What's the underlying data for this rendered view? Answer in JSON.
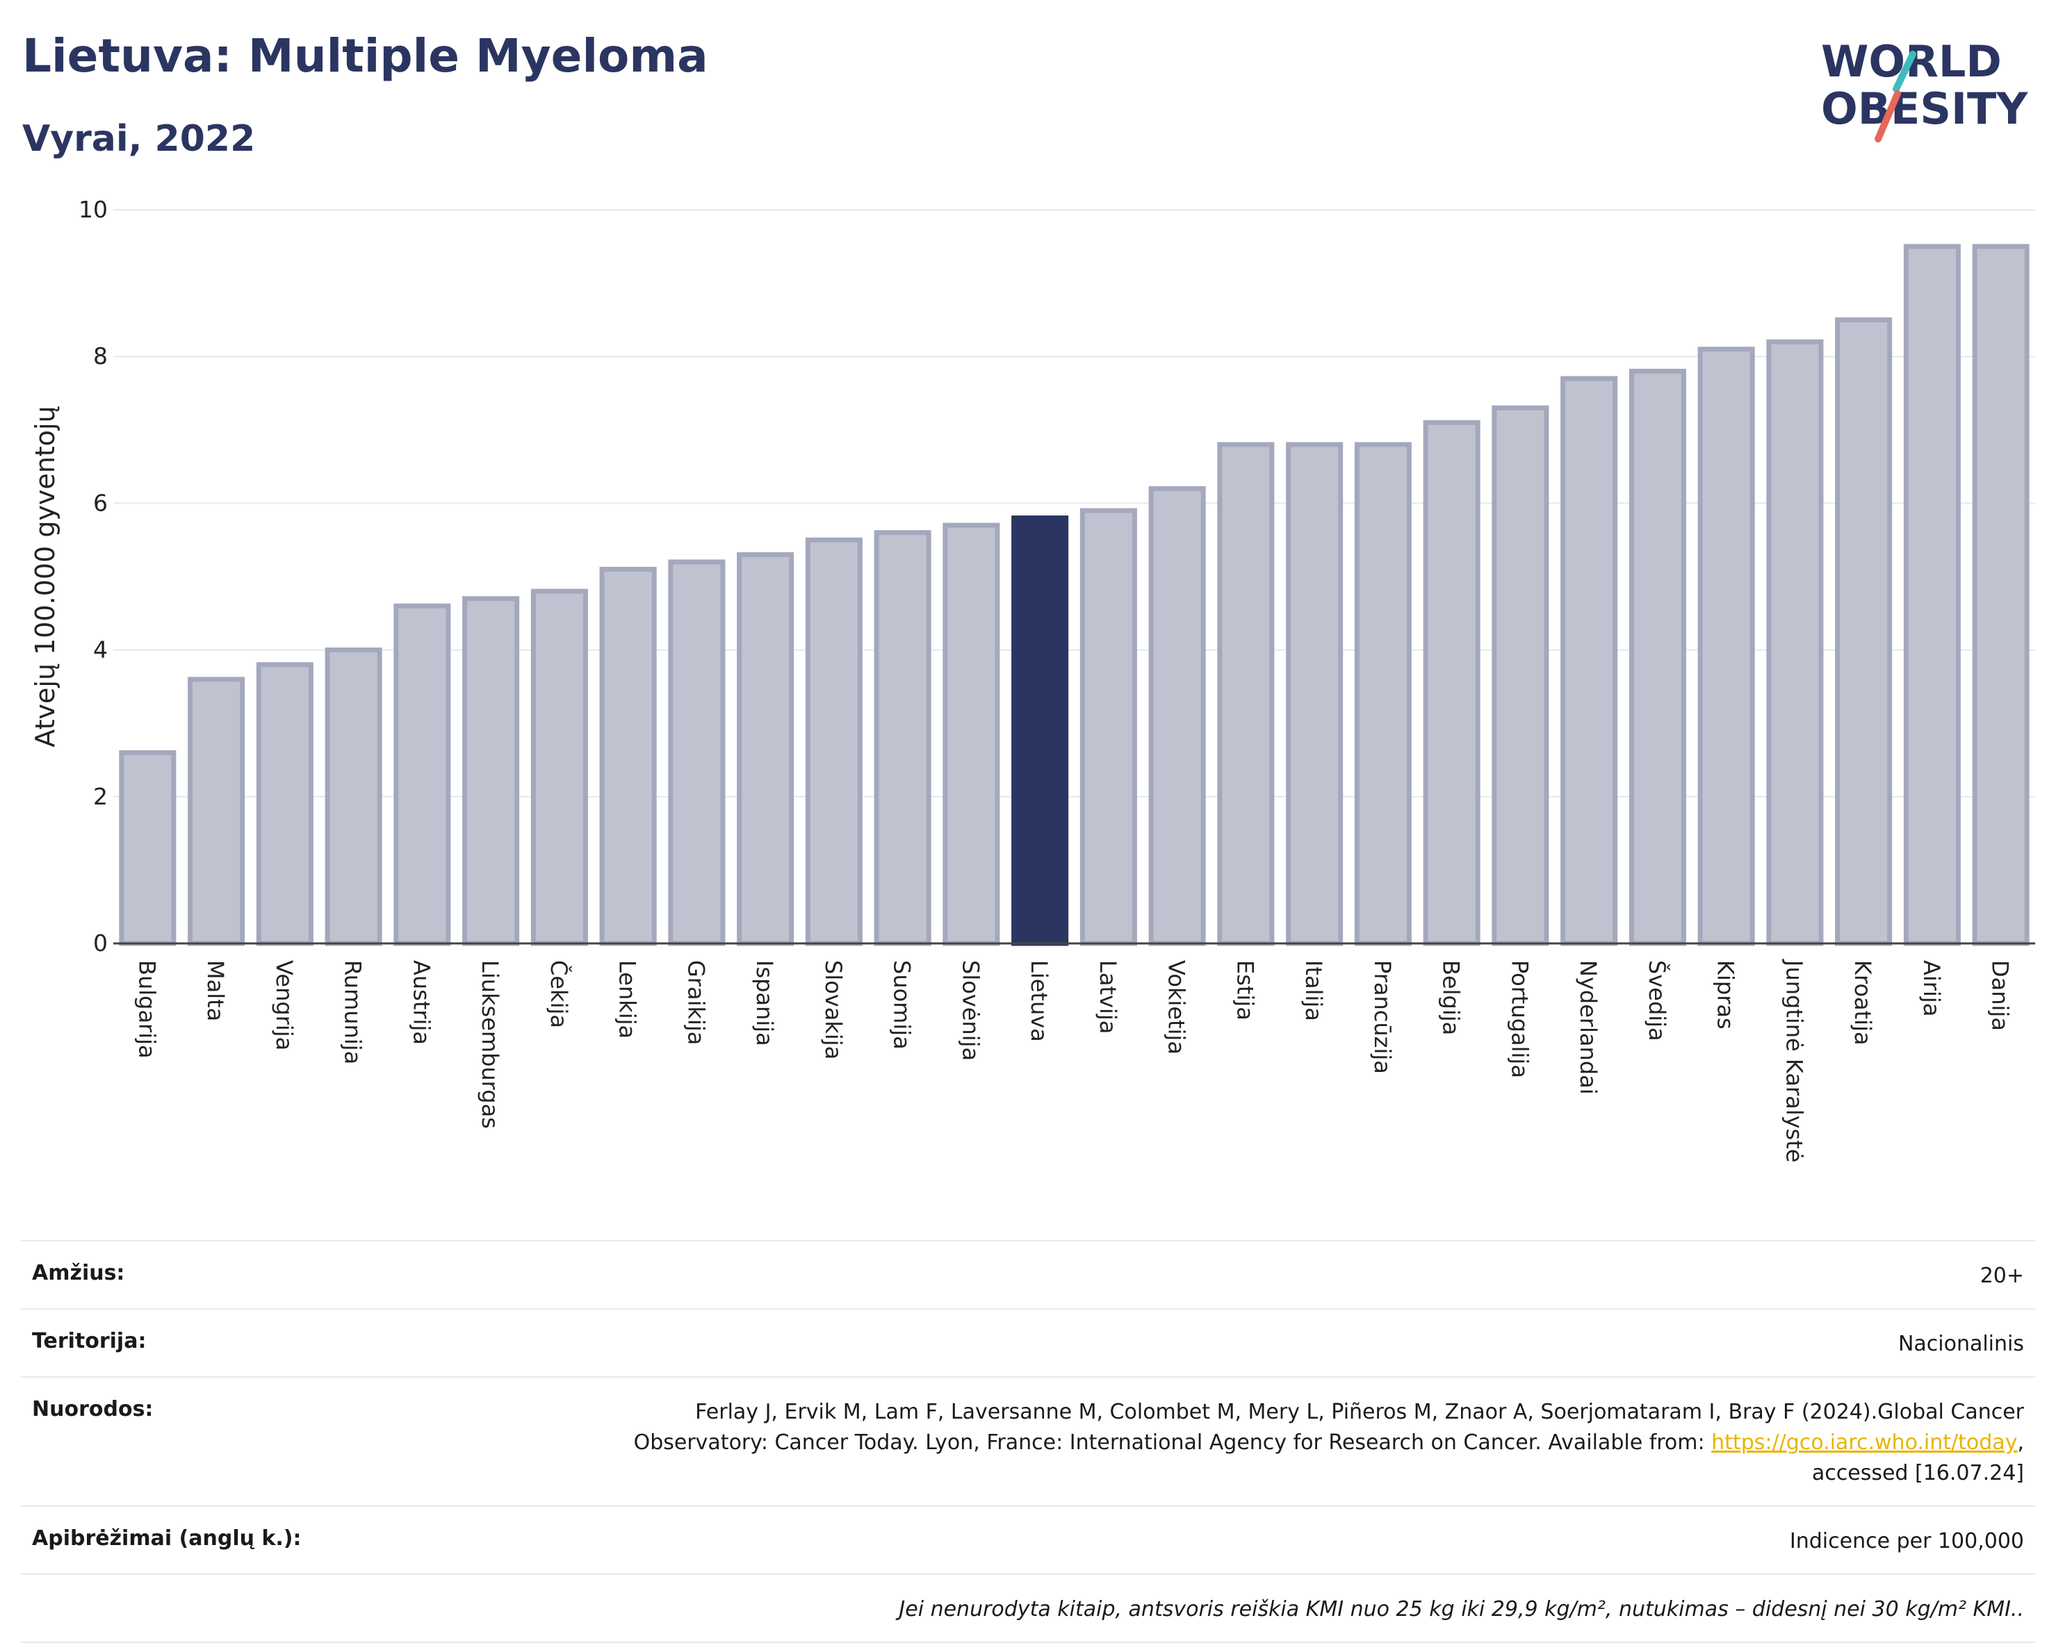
{
  "header": {
    "title": "Lietuva: Multiple Myeloma",
    "subtitle": "Vyrai, 2022",
    "logo_line1": "WORLD",
    "logo_line2": "OBESITY"
  },
  "colors": {
    "bar": "#c0c3cf",
    "bar_border": "#a4a8bd",
    "highlight": "#2b3561",
    "logo_navy": "#2b3561",
    "logo_teal": "#3dbbc0",
    "logo_coral": "#e6685a",
    "link": "#e8b400"
  },
  "chart_data": {
    "type": "bar",
    "ylabel": "Atvejų 100.000 gyventojų",
    "ylim": [
      0,
      10
    ],
    "yticks": [
      0,
      2,
      4,
      6,
      8,
      10
    ],
    "grid": true,
    "highlight": "Lietuva",
    "categories": [
      "Bulgarija",
      "Malta",
      "Vengrija",
      "Rumunija",
      "Austrija",
      "Liuksemburgas",
      "Čekija",
      "Lenkija",
      "Graikija",
      "Ispanija",
      "Slovakija",
      "Suomija",
      "Slovėnija",
      "Lietuva",
      "Latvija",
      "Vokietija",
      "Estija",
      "Italija",
      "Prancūzija",
      "Belgija",
      "Portugalija",
      "Nyderlandai",
      "Švedija",
      "Kipras",
      "Jungtinė Karalystė",
      "Kroatija",
      "Airija",
      "Danija"
    ],
    "values": [
      2.6,
      3.6,
      3.8,
      4.0,
      4.6,
      4.7,
      4.8,
      5.1,
      5.2,
      5.3,
      5.5,
      5.6,
      5.7,
      5.8,
      5.9,
      6.2,
      6.8,
      6.8,
      6.8,
      7.1,
      7.3,
      7.7,
      7.8,
      8.1,
      8.2,
      8.5,
      9.5,
      9.5
    ]
  },
  "info": {
    "age_label": "Amžius:",
    "age_value": "20+",
    "territory_label": "Teritorija:",
    "territory_value": "Nacionalinis",
    "refs_label": "Nuorodos:",
    "refs_line1": "Ferlay J, Ervik M, Lam F, Laversanne M, Colombet M, Mery L, Piñeros M, Znaor A, Soerjomataram I, Bray F (2024).Global Cancer",
    "refs_line2": "Observatory: Cancer Today. Lyon, France: International Agency for Research on Cancer. Available from: ",
    "refs_link": "https://gco.iarc.who.int/today",
    "refs_line2_end": ",",
    "refs_line3": "accessed [16.07.24]",
    "defs_label": "Apibrėžimai (anglų k.):",
    "defs_value": "Indicence per 100,000",
    "note": "Jei nenurodyta kitaip, antsvoris reiškia KMI nuo 25 kg iki 29,9 kg/m², nutukimas – didesnį nei 30 kg/m² KMI.."
  }
}
